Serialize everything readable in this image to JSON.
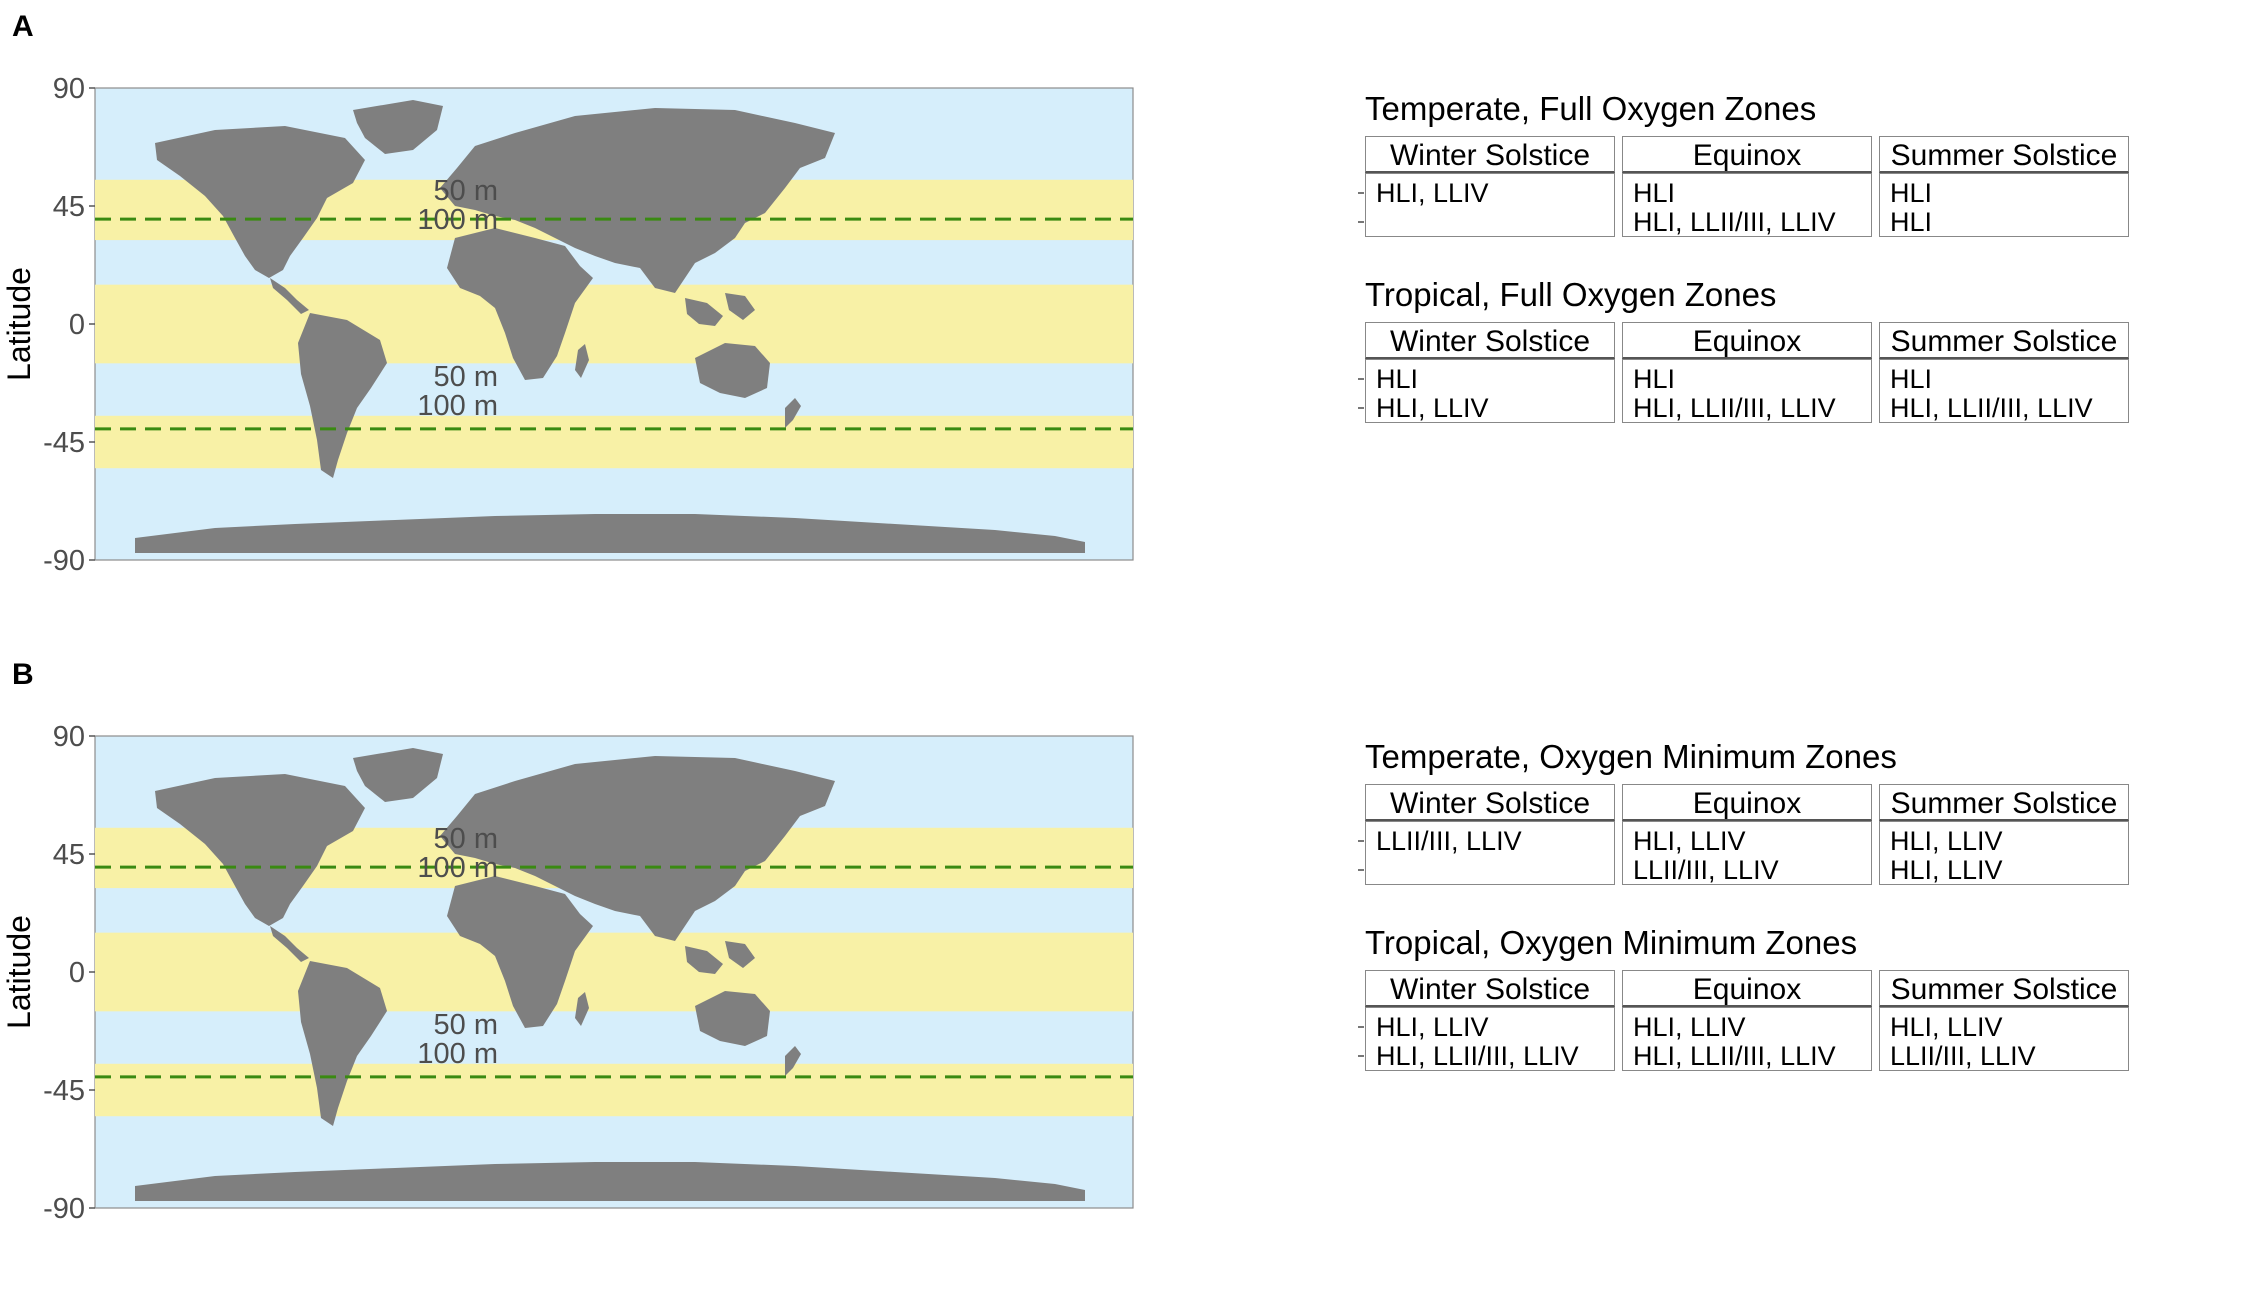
{
  "panels": [
    {
      "label": "A",
      "map": {
        "y_axis_label": "Latitude",
        "y_ticks": [
          "90",
          "45",
          "0",
          "-45",
          "-90"
        ]
      },
      "tables": [
        {
          "title": "Temperate, Full Oxygen Zones",
          "columns": [
            "Winter Solstice",
            "Equinox",
            "Summer Solstice"
          ],
          "rows": [
            {
              "depth": "50 m",
              "cells": [
                "HLI, LLIV",
                "HLI",
                "HLI"
              ]
            },
            {
              "depth": "100 m",
              "cells": [
                "",
                "HLI, LLII/III, LLIV",
                "HLI"
              ]
            }
          ]
        },
        {
          "title": "Tropical, Full Oxygen Zones",
          "columns": [
            "Winter Solstice",
            "Equinox",
            "Summer Solstice"
          ],
          "rows": [
            {
              "depth": "50 m",
              "cells": [
                "HLI",
                "HLI",
                "HLI"
              ]
            },
            {
              "depth": "100 m",
              "cells": [
                "HLI, LLIV",
                "HLI, LLII/III, LLIV",
                "HLI, LLII/III, LLIV"
              ]
            }
          ]
        }
      ]
    },
    {
      "label": "B",
      "map": {
        "y_axis_label": "Latitude",
        "y_ticks": [
          "90",
          "45",
          "0",
          "-45",
          "-90"
        ]
      },
      "tables": [
        {
          "title": "Temperate, Oxygen Minimum Zones",
          "columns": [
            "Winter Solstice",
            "Equinox",
            "Summer Solstice"
          ],
          "rows": [
            {
              "depth": "50 m",
              "cells": [
                "LLII/III, LLIV",
                "HLI, LLIV",
                "HLI, LLIV"
              ]
            },
            {
              "depth": "100 m",
              "cells": [
                "",
                "LLII/III, LLIV",
                "HLI, LLIV"
              ]
            }
          ]
        },
        {
          "title": "Tropical, Oxygen Minimum Zones",
          "columns": [
            "Winter Solstice",
            "Equinox",
            "Summer Solstice"
          ],
          "rows": [
            {
              "depth": "50 m",
              "cells": [
                "HLI, LLIV",
                "HLI, LLIV",
                "HLI, LLIV"
              ]
            },
            {
              "depth": "100 m",
              "cells": [
                "HLI, LLII/III, LLIV",
                "HLI, LLII/III, LLIV",
                "LLII/III, LLIV"
              ]
            }
          ]
        }
      ]
    }
  ],
  "colors": {
    "ocean": "#d6eefb",
    "band": "#f8f1a6",
    "land": "#7f7f7f",
    "dashed_line": "#3a8a12"
  }
}
